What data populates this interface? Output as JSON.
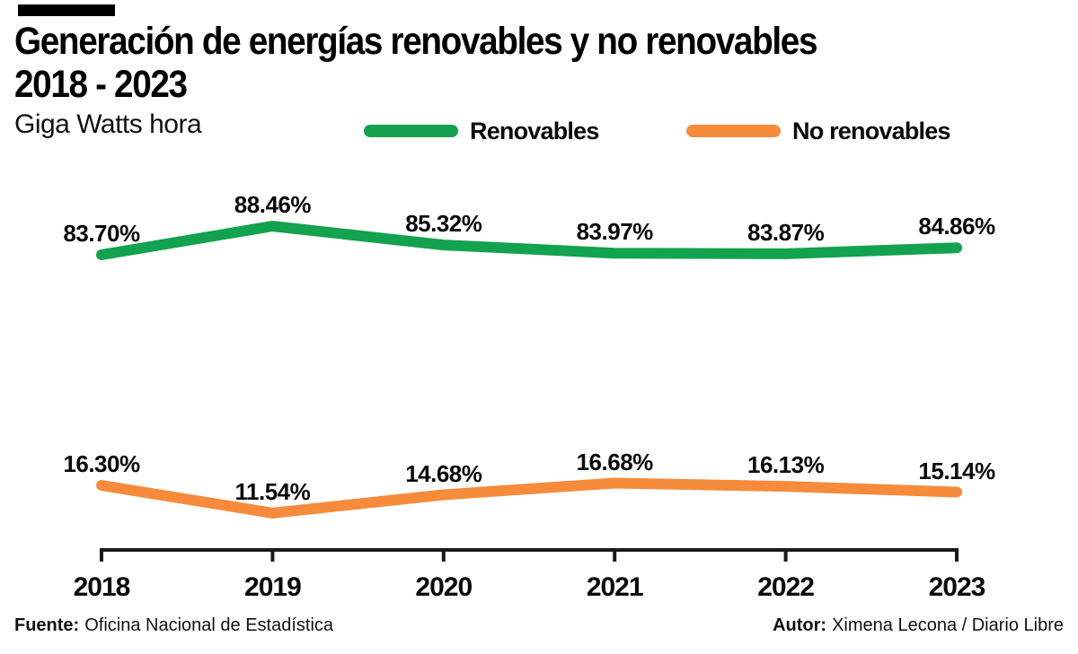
{
  "header": {
    "title_line1": "Generación de energías renovables y no renovables",
    "title_line2": "2018 - 2023",
    "subtitle": "Giga Watts hora"
  },
  "legend": [
    {
      "label": "Renovables",
      "color": "#13a24f"
    },
    {
      "label": "No renovables",
      "color": "#f68b3b"
    }
  ],
  "chart_data": {
    "type": "line",
    "title": "Generación de energías renovables y no renovables 2018 - 2023",
    "ylabel": "Giga Watts hora",
    "unit": "%",
    "grid": false,
    "legend_position": "top",
    "categories": [
      "2018",
      "2019",
      "2020",
      "2021",
      "2022",
      "2023"
    ],
    "series": [
      {
        "name": "Renovables",
        "color": "#13a24f",
        "values": [
          83.7,
          88.46,
          85.32,
          83.97,
          83.87,
          84.86
        ],
        "labels": [
          "83.70%",
          "88.46%",
          "85.32%",
          "83.97%",
          "83.87%",
          "84.86%"
        ]
      },
      {
        "name": "No renovables",
        "color": "#f68b3b",
        "values": [
          16.3,
          11.54,
          14.68,
          16.68,
          16.13,
          15.14
        ],
        "labels": [
          "16.30%",
          "11.54%",
          "14.68%",
          "16.68%",
          "16.13%",
          "15.14%"
        ]
      }
    ]
  },
  "footer": {
    "source_label": "Fuente:",
    "source": "Oficina Nacional de Estadística",
    "author_label": "Autor:",
    "author": "Ximena Lecona / Diario Libre"
  }
}
